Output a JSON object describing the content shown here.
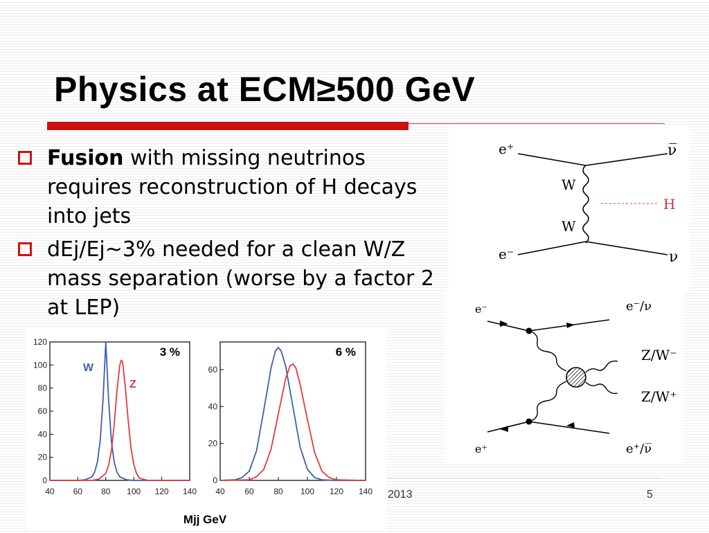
{
  "slide": {
    "title": "Physics at ECM≥500 GeV",
    "bullets": [
      {
        "bold": "Fusion",
        "text": " with missing neutrinos requires reconstruction of H decays into jets"
      },
      {
        "bold": "",
        "text": "dEj/Ej~3% needed for a clean W/Z mass separation (worse by a factor 2 at LEP)"
      }
    ],
    "footer_date": "2013",
    "page_number": "5",
    "colors": {
      "accent": "#cc1111",
      "w_curve": "#3a5fb0",
      "z_curve": "#e03a3a"
    }
  },
  "feynman_top": {
    "e_plus": "e⁺",
    "nu_bar": "ν̅",
    "w_upper": "W",
    "w_lower": "W",
    "higgs": "H",
    "e_minus": "e⁻",
    "nu": "ν"
  },
  "feynman_bottom": {
    "in_top": "e⁻",
    "out_top": "e⁻/ν",
    "boson_1": "Z/W⁻",
    "boson_2": "Z/W⁺",
    "in_bottom": "e⁺",
    "out_bottom": "e⁺/ν̅"
  },
  "chart_data": [
    {
      "type": "line",
      "annotation": "3 %",
      "xlabel": "Mjj  GeV",
      "xlim": [
        40,
        140
      ],
      "ylim": [
        0,
        120
      ],
      "xticks": [
        40,
        60,
        80,
        100,
        120,
        140
      ],
      "yticks": [
        0,
        20,
        40,
        60,
        80,
        100,
        120
      ],
      "series": [
        {
          "name": "W",
          "color": "#3a5fb0",
          "x": [
            40,
            50,
            60,
            65,
            70,
            72,
            74,
            76,
            78,
            80,
            82,
            84,
            86,
            88,
            90,
            95,
            100,
            110,
            120,
            140
          ],
          "y": [
            0,
            0,
            0,
            0.5,
            3,
            7,
            16,
            34,
            70,
            120,
            70,
            34,
            16,
            7,
            3,
            0.5,
            0,
            0,
            0,
            0
          ]
        },
        {
          "name": "Z",
          "color": "#e03a3a",
          "x": [
            40,
            60,
            70,
            75,
            80,
            82,
            84,
            86,
            88,
            90,
            91,
            92,
            94,
            96,
            98,
            100,
            102,
            104,
            110,
            120,
            140
          ],
          "y": [
            0,
            0,
            0,
            1,
            6,
            13,
            26,
            48,
            78,
            100,
            104,
            103,
            80,
            52,
            28,
            14,
            6,
            2,
            0,
            0,
            0
          ]
        }
      ]
    },
    {
      "type": "line",
      "annotation": "6 %",
      "xlabel": "",
      "xlim": [
        40,
        140
      ],
      "ylim": [
        0,
        75
      ],
      "xticks": [
        40,
        60,
        80,
        100,
        120,
        140
      ],
      "yticks": [
        0,
        20,
        40,
        60
      ],
      "series": [
        {
          "name": "",
          "color": "#3a5fb0",
          "x": [
            40,
            50,
            55,
            60,
            65,
            70,
            75,
            78,
            80,
            82,
            85,
            90,
            95,
            100,
            105,
            110,
            120,
            140
          ],
          "y": [
            0,
            0.3,
            1.5,
            5,
            16,
            38,
            61,
            70,
            72,
            70,
            62,
            40,
            18,
            6,
            1.5,
            0.3,
            0,
            0
          ]
        },
        {
          "name": "",
          "color": "#e03a3a",
          "x": [
            40,
            60,
            65,
            70,
            75,
            80,
            85,
            88,
            90,
            92,
            95,
            100,
            105,
            110,
            115,
            120,
            140
          ],
          "y": [
            0,
            0.3,
            2,
            6,
            17,
            36,
            55,
            62,
            63,
            61,
            52,
            33,
            15,
            5,
            1.5,
            0.3,
            0
          ]
        }
      ]
    }
  ]
}
